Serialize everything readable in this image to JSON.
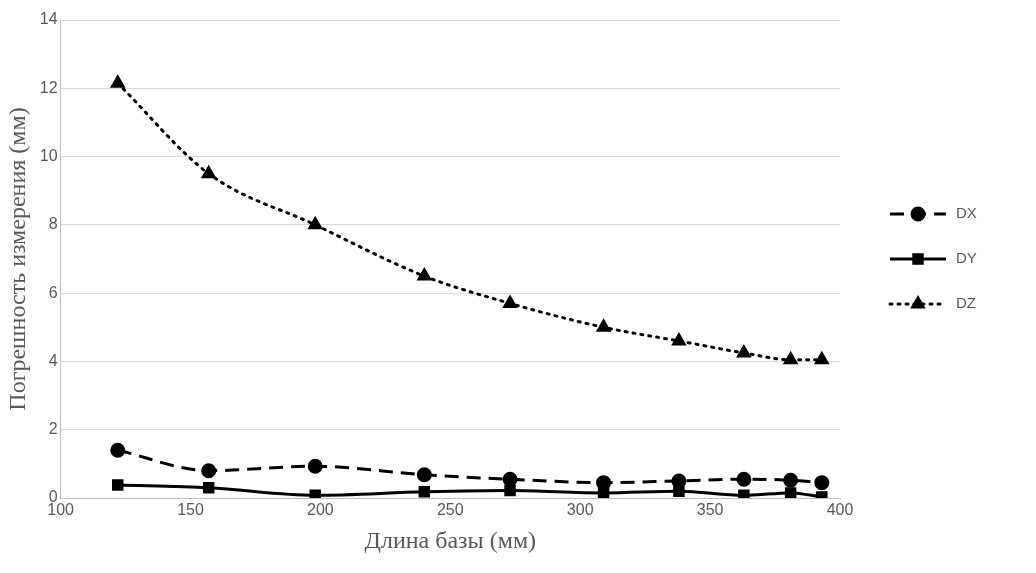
{
  "chart_data": {
    "type": "line",
    "xlabel": "Длина базы (мм)",
    "ylabel": "Погрешность измерения (мм)",
    "x": [
      122,
      157,
      198,
      240,
      273,
      309,
      338,
      363,
      381,
      393
    ],
    "xlim": [
      100,
      400
    ],
    "xticks": [
      100,
      150,
      200,
      250,
      300,
      350,
      400
    ],
    "ylim": [
      0,
      14
    ],
    "yticks": [
      0,
      2,
      4,
      6,
      8,
      10,
      12,
      14
    ],
    "grid": "y",
    "legend": "right",
    "series": [
      {
        "name": "DX",
        "color": "#000000",
        "marker": "circle",
        "line_style": "dashed",
        "values": [
          1.4,
          0.8,
          0.93,
          0.68,
          0.55,
          0.45,
          0.5,
          0.55,
          0.52,
          0.45
        ]
      },
      {
        "name": "DY",
        "color": "#000000",
        "marker": "square",
        "line_style": "solid",
        "values": [
          0.38,
          0.3,
          0.08,
          0.18,
          0.22,
          0.15,
          0.2,
          0.08,
          0.15,
          0.03
        ]
      },
      {
        "name": "DZ",
        "color": "#000000",
        "marker": "triangle",
        "line_style": "dotted",
        "values": [
          12.15,
          9.5,
          8.0,
          6.5,
          5.7,
          5.0,
          4.6,
          4.25,
          4.05,
          4.05
        ]
      }
    ]
  }
}
